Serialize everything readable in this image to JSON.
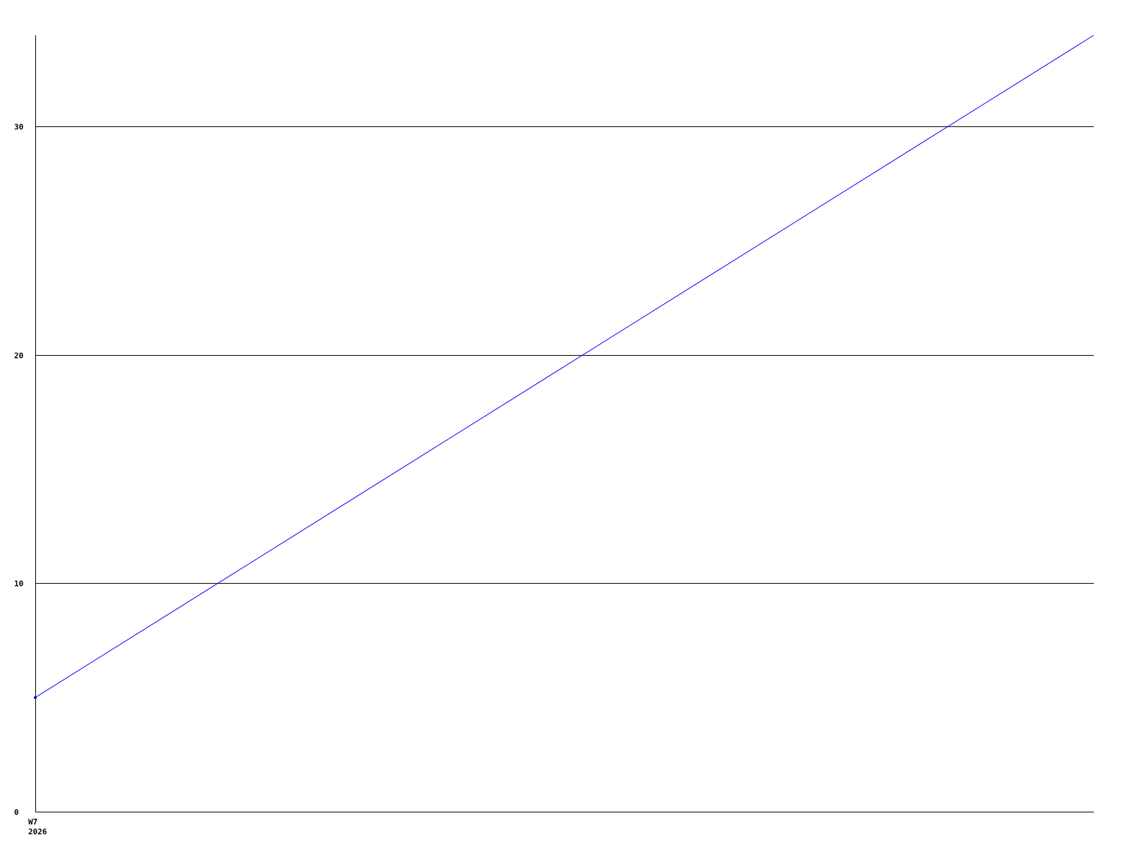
{
  "chart_data": {
    "type": "line",
    "title": "",
    "xlabel": "",
    "ylabel": "",
    "ylim": [
      0,
      34
    ],
    "yticks": [
      "0",
      "10",
      "20",
      "30"
    ],
    "ytick_values": [
      0,
      10,
      20,
      30
    ],
    "grid": true,
    "x_tick_labels": [
      {
        "line1": "W7",
        "line2": "2026"
      }
    ],
    "series": [
      {
        "color": "#0000ff",
        "x": [
          0,
          1
        ],
        "values": [
          5,
          34
        ],
        "markers": [
          true,
          false
        ]
      }
    ],
    "colors": {
      "grid": "#000000",
      "axis": "#000000",
      "series": "#0000ff"
    }
  }
}
